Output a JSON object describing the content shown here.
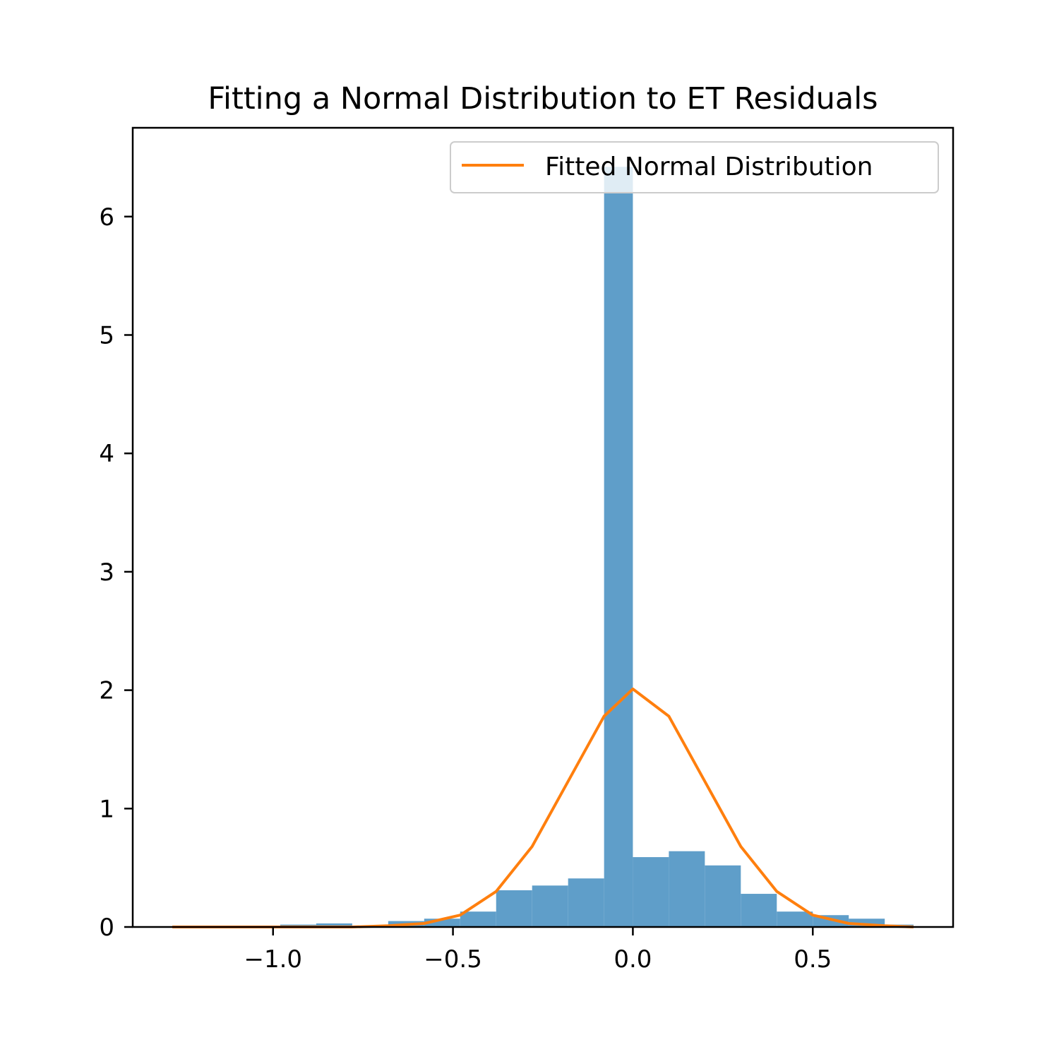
{
  "chart_data": {
    "type": "bar",
    "title": "Fitting a Normal Distribution to ET Residuals",
    "xlabel": "",
    "ylabel": "",
    "xlim": [
      -1.39,
      0.89
    ],
    "ylim": [
      0,
      6.75
    ],
    "x_ticks": [
      {
        "value": -1.0,
        "label": "−1.0"
      },
      {
        "value": -0.5,
        "label": "−0.5"
      },
      {
        "value": 0.0,
        "label": "0.0"
      },
      {
        "value": 0.5,
        "label": "0.5"
      }
    ],
    "y_ticks": [
      {
        "value": 0,
        "label": "0"
      },
      {
        "value": 1,
        "label": "1"
      },
      {
        "value": 2,
        "label": "2"
      },
      {
        "value": 3,
        "label": "3"
      },
      {
        "value": 4,
        "label": "4"
      },
      {
        "value": 5,
        "label": "5"
      },
      {
        "value": 6,
        "label": "6"
      }
    ],
    "grid": false,
    "legend": {
      "placement": "top-right",
      "entries": [
        "Fitted Normal Distribution"
      ]
    },
    "histogram": {
      "color": "#5f9ec9",
      "bin_edges": [
        -1.28,
        -1.18,
        -1.08,
        -0.98,
        -0.88,
        -0.78,
        -0.68,
        -0.58,
        -0.48,
        -0.38,
        -0.28,
        -0.18,
        -0.08,
        0.0,
        0.1,
        0.2,
        0.3,
        0.4,
        0.5,
        0.6,
        0.7,
        0.78
      ],
      "values": [
        0.01,
        0.01,
        0.01,
        0.02,
        0.03,
        0.01,
        0.05,
        0.07,
        0.13,
        0.31,
        0.35,
        0.41,
        6.42,
        0.59,
        0.64,
        0.52,
        0.28,
        0.13,
        0.1,
        0.07,
        0.02
      ]
    },
    "series": [
      {
        "name": "Fitted Normal Distribution",
        "type": "line",
        "color": "#ff7f0e",
        "x": [
          -1.28,
          -1.18,
          -1.08,
          -0.98,
          -0.88,
          -0.78,
          -0.68,
          -0.58,
          -0.48,
          -0.38,
          -0.28,
          -0.18,
          -0.08,
          0.0,
          0.1,
          0.2,
          0.3,
          0.4,
          0.5,
          0.6,
          0.7,
          0.78
        ],
        "y": [
          0.0,
          0.0,
          0.0,
          0.0,
          0.0,
          0.0,
          0.01,
          0.03,
          0.1,
          0.3,
          0.68,
          1.23,
          1.78,
          2.01,
          1.78,
          1.23,
          0.68,
          0.3,
          0.1,
          0.03,
          0.01,
          0.0
        ]
      }
    ]
  }
}
